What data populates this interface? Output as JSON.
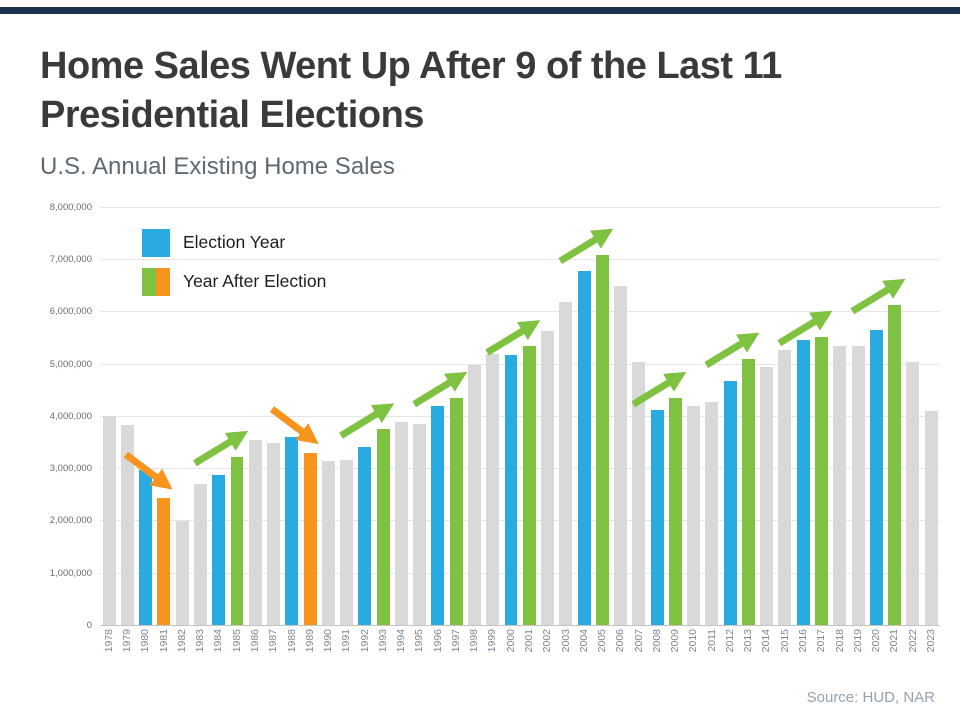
{
  "page": {
    "title": "Home Sales Went Up After 9 of the Last 11 Presidential Elections",
    "subtitle": "U.S. Annual Existing Home Sales",
    "source": "Source: HUD, NAR"
  },
  "legend": {
    "election_label": "Election Year",
    "year_after_label": "Year After Election"
  },
  "colors": {
    "accent_bar": "#1b334d",
    "election_blue": "#29abe2",
    "up_green": "#7fc241",
    "down_orange": "#f7941d",
    "neutral_gray": "#d9d9d9"
  },
  "chart_data": {
    "type": "bar",
    "title": "U.S. Annual Existing Home Sales",
    "ylim": [
      0,
      8000000
    ],
    "ytick_labels": [
      "0",
      "1,000,000",
      "2,000,000",
      "3,000,000",
      "4,000,000",
      "5,000,000",
      "6,000,000",
      "7,000,000",
      "8,000,000"
    ],
    "grid": true,
    "legend_position": "top-left",
    "categories": [
      "1978",
      "1979",
      "1980",
      "1981",
      "1982",
      "1983",
      "1984",
      "1985",
      "1986",
      "1987",
      "1988",
      "1989",
      "1990",
      "1991",
      "1992",
      "1993",
      "1994",
      "1995",
      "1996",
      "1997",
      "1998",
      "1999",
      "2000",
      "2001",
      "2002",
      "2003",
      "2004",
      "2005",
      "2006",
      "2007",
      "2008",
      "2009",
      "2010",
      "2011",
      "2012",
      "2013",
      "2014",
      "2015",
      "2016",
      "2017",
      "2018",
      "2019",
      "2020",
      "2021",
      "2022",
      "2023"
    ],
    "values": [
      3990000,
      3830000,
      2970000,
      2420000,
      1990000,
      2700000,
      2870000,
      3210000,
      3530000,
      3480000,
      3590000,
      3290000,
      3140000,
      3150000,
      3400000,
      3740000,
      3880000,
      3850000,
      4180000,
      4340000,
      4970000,
      5180000,
      5160000,
      5330000,
      5630000,
      6180000,
      6780000,
      7080000,
      6480000,
      5030000,
      4110000,
      4340000,
      4190000,
      4260000,
      4660000,
      5090000,
      4940000,
      5250000,
      5450000,
      5510000,
      5340000,
      5340000,
      5640000,
      6120000,
      5030000,
      4090000
    ],
    "bar_kinds": [
      "neutral",
      "neutral",
      "election",
      "down",
      "neutral",
      "neutral",
      "election",
      "up",
      "neutral",
      "neutral",
      "election",
      "down",
      "neutral",
      "neutral",
      "election",
      "up",
      "neutral",
      "neutral",
      "election",
      "up",
      "neutral",
      "neutral",
      "election",
      "up",
      "neutral",
      "neutral",
      "election",
      "up",
      "neutral",
      "neutral",
      "election",
      "up",
      "neutral",
      "neutral",
      "election",
      "up",
      "neutral",
      "neutral",
      "election",
      "up",
      "neutral",
      "neutral",
      "election",
      "up",
      "neutral",
      "neutral"
    ],
    "arrows": [
      {
        "year": "1981",
        "direction": "down"
      },
      {
        "year": "1985",
        "direction": "up"
      },
      {
        "year": "1989",
        "direction": "down"
      },
      {
        "year": "1993",
        "direction": "up"
      },
      {
        "year": "1997",
        "direction": "up"
      },
      {
        "year": "2001",
        "direction": "up"
      },
      {
        "year": "2005",
        "direction": "up"
      },
      {
        "year": "2009",
        "direction": "up"
      },
      {
        "year": "2013",
        "direction": "up"
      },
      {
        "year": "2017",
        "direction": "up"
      },
      {
        "year": "2021",
        "direction": "up"
      }
    ]
  }
}
